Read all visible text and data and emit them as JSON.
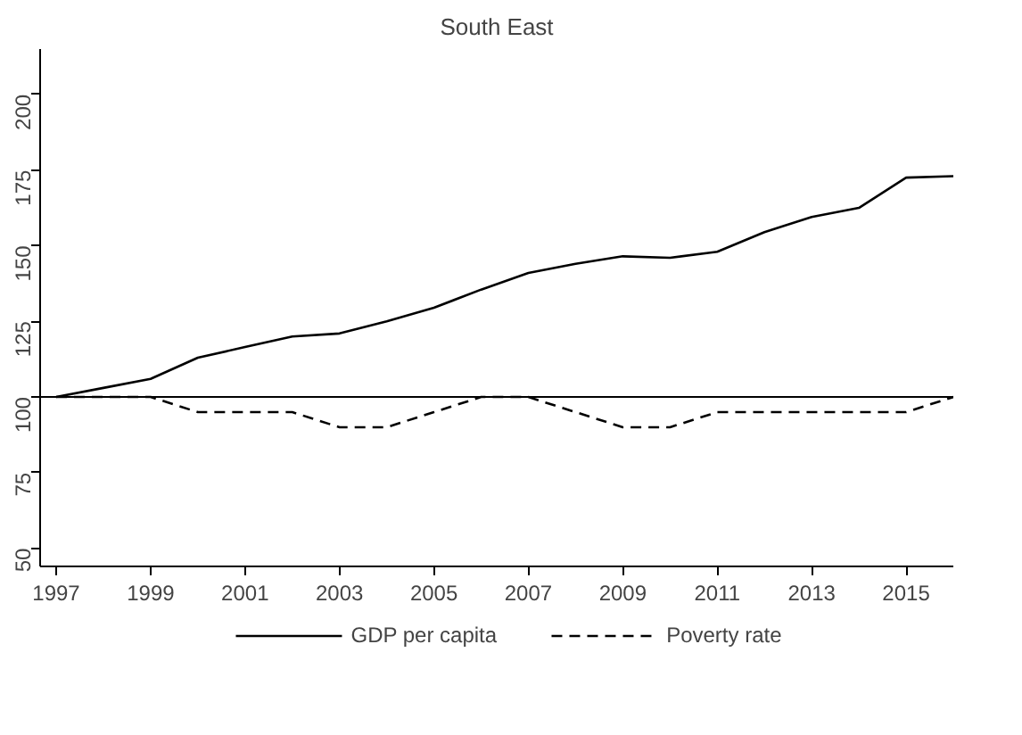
{
  "chart_data": {
    "type": "line",
    "title": "South East",
    "x": [
      1997,
      1998,
      1999,
      2000,
      2001,
      2002,
      2003,
      2004,
      2005,
      2006,
      2007,
      2008,
      2009,
      2010,
      2011,
      2012,
      2013,
      2014,
      2015,
      2016
    ],
    "series": [
      {
        "name": "GDP per capita",
        "color": "#000000",
        "line_style": "solid",
        "values": [
          100,
          103,
          106,
          113,
          116.5,
          120,
          121,
          125,
          129.5,
          135.5,
          141,
          144,
          146.5,
          146,
          148,
          154.5,
          159.5,
          162.5,
          172.5,
          173
        ]
      },
      {
        "name": "Poverty rate",
        "color": "#000000",
        "line_style": "dashed",
        "values": [
          100,
          100,
          100,
          95,
          95,
          95,
          90,
          90,
          95,
          100,
          100,
          95,
          90,
          90,
          95,
          95,
          95,
          95,
          95,
          100
        ]
      }
    ],
    "xlim": [
      1996.66,
      2016
    ],
    "ylim": [
      44,
      215
    ],
    "xticks": [
      1997,
      1999,
      2001,
      2003,
      2005,
      2007,
      2009,
      2011,
      2013,
      2015
    ],
    "yticks": [
      50,
      75,
      100,
      125,
      150,
      175,
      200
    ],
    "ref_lines": [
      {
        "axis": "y",
        "value": 100,
        "color": "#000000"
      }
    ],
    "grid": false,
    "legend": "bottom",
    "marker": "none"
  }
}
